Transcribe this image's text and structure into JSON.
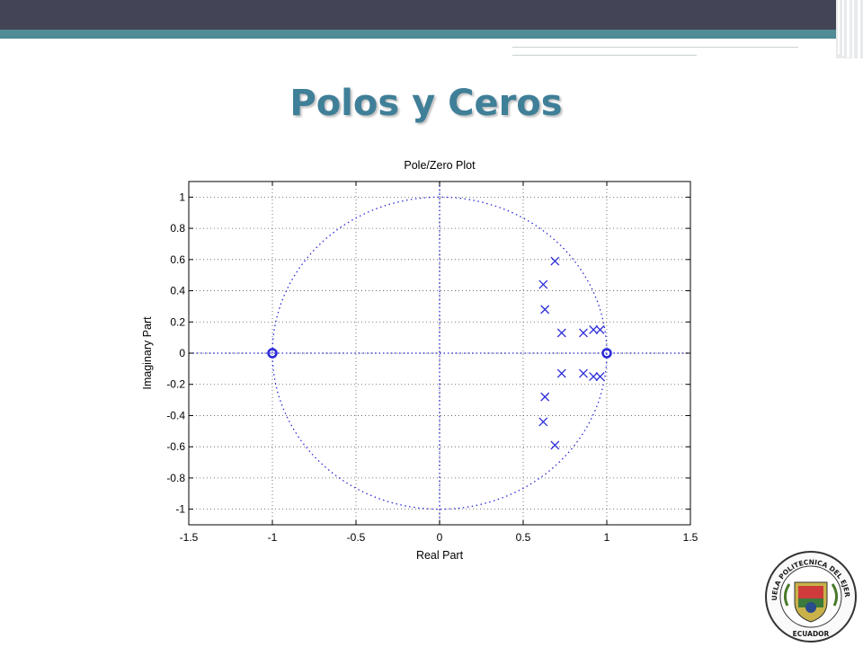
{
  "slide": {
    "title": "Polos y Ceros"
  },
  "chart_data": {
    "type": "scatter",
    "title": "Pole/Zero Plot",
    "xlabel": "Real Part",
    "ylabel": "Imaginary Part",
    "xlim": [
      -1.5,
      1.5
    ],
    "ylim": [
      -1.1,
      1.1
    ],
    "xticks": [
      "-1.5",
      "-1",
      "-0.5",
      "0",
      "0.5",
      "1",
      "1.5"
    ],
    "yticks": [
      "1",
      "0.8",
      "0.6",
      "0.4",
      "0.2",
      "0",
      "-0.2",
      "-0.4",
      "-0.6",
      "-0.8",
      "-1"
    ],
    "grid": true,
    "unit_circle": true,
    "series": [
      {
        "marker": "x",
        "points": [
          [
            0.69,
            0.59
          ],
          [
            0.62,
            0.44
          ],
          [
            0.63,
            0.28
          ],
          [
            0.73,
            0.13
          ],
          [
            0.86,
            0.13
          ],
          [
            0.92,
            0.15
          ],
          [
            0.96,
            0.15
          ],
          [
            0.69,
            -0.59
          ],
          [
            0.62,
            -0.44
          ],
          [
            0.63,
            -0.28
          ],
          [
            0.73,
            -0.13
          ],
          [
            0.86,
            -0.13
          ],
          [
            0.92,
            -0.15
          ],
          [
            0.96,
            -0.15
          ]
        ]
      },
      {
        "marker": "o",
        "points": [
          [
            -1,
            0
          ],
          [
            1,
            0
          ]
        ]
      }
    ],
    "color": "#2a2ad8"
  },
  "logo": {
    "seal_text": "ESCUELA POLITECNICA DEL EJERCITO",
    "seal_bottom": "ECUADOR"
  }
}
